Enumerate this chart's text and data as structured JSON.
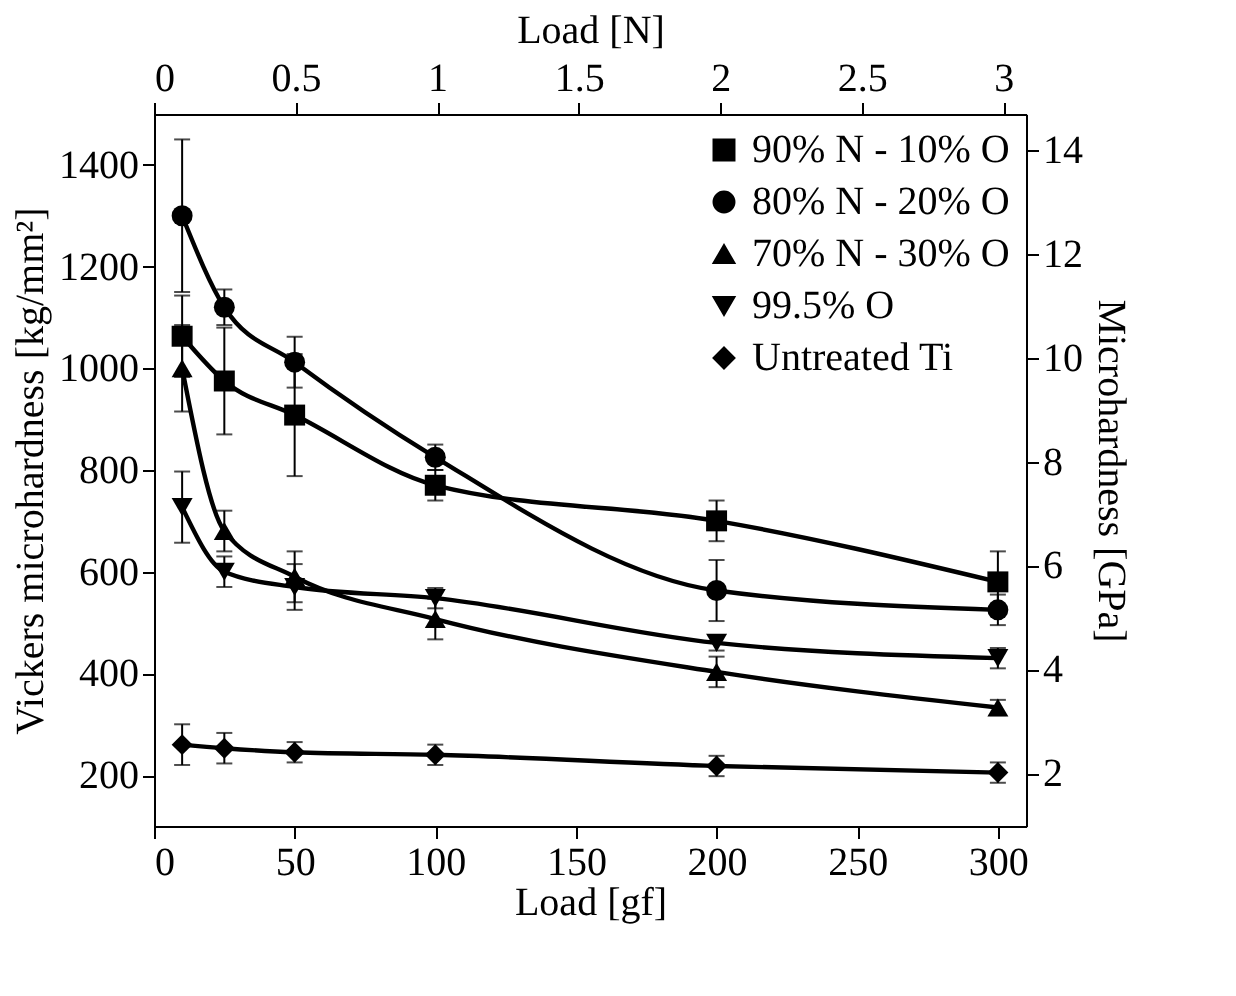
{
  "chart_data": {
    "type": "line",
    "xlabel": "Load [gf]",
    "ylabel": "Vickers microhardness [kg/mm²]",
    "x2label": "Load [N]",
    "y2label": "Microhardness [GPa]",
    "x": [
      10,
      25,
      50,
      100,
      200,
      300
    ],
    "xlim": [
      0,
      310
    ],
    "xticks": [
      0,
      50,
      100,
      150,
      200,
      250,
      300
    ],
    "ylim": [
      100,
      1500
    ],
    "yticks": [
      200,
      400,
      600,
      800,
      1000,
      1200,
      1400
    ],
    "x2lim": [
      0,
      3.08
    ],
    "x2ticks": [
      0,
      0.5,
      1,
      1.5,
      2,
      2.5,
      3
    ],
    "y2lim": [
      0.98,
      14.7
    ],
    "y2ticks": [
      2,
      4,
      6,
      8,
      10,
      12,
      14
    ],
    "legend": "top right",
    "grid": false,
    "series": [
      {
        "name": "90% N - 10% O",
        "color": "#000000",
        "marker": "square",
        "values": [
          1063,
          975,
          908,
          770,
          700,
          580
        ],
        "errors": [
          80,
          105,
          120,
          30,
          40,
          60
        ]
      },
      {
        "name": "80% N - 20% O",
        "color": "#000000",
        "marker": "circle",
        "values": [
          1300,
          1120,
          1012,
          825,
          563,
          525
        ],
        "errors": [
          150,
          35,
          50,
          25,
          60,
          30
        ]
      },
      {
        "name": "70% N - 30% O",
        "color": "#000000",
        "marker": "triangle",
        "values": [
          1000,
          680,
          590,
          507,
          403,
          333
        ],
        "errors": [
          85,
          40,
          50,
          40,
          30,
          15
        ]
      },
      {
        "name": "99.5% O",
        "color": "#000000",
        "marker": "triangle-down",
        "values": [
          727,
          600,
          570,
          548,
          460,
          430
        ],
        "errors": [
          70,
          30,
          45,
          20,
          15,
          20
        ]
      },
      {
        "name": "Untreated Ti",
        "color": "#000000",
        "marker": "diamond",
        "values": [
          260,
          253,
          245,
          240,
          218,
          205
        ],
        "errors": [
          40,
          30,
          20,
          20,
          20,
          20
        ]
      }
    ]
  }
}
